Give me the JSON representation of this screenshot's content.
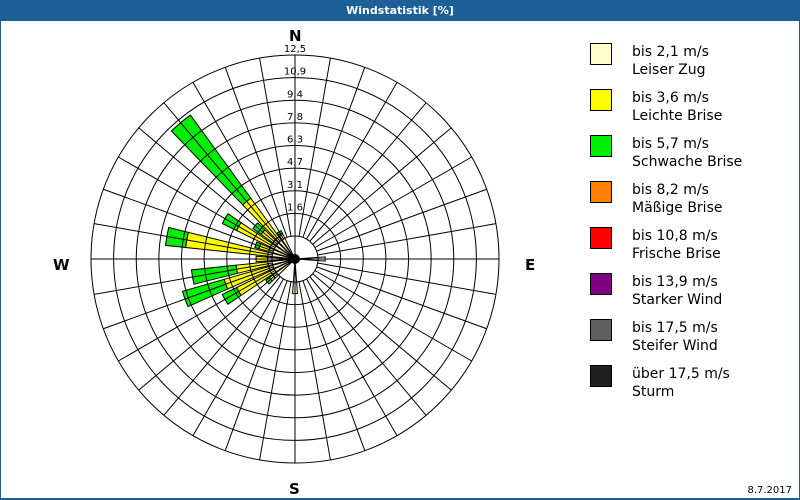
{
  "window": {
    "title": "Windstatistik [%]"
  },
  "compass": {
    "n": "N",
    "e": "E",
    "s": "S",
    "w": "W"
  },
  "date": "8.7.2017",
  "legend": [
    {
      "speed": "bis 2,1 m/s",
      "name": "Leiser Zug",
      "color": "#ffffcc"
    },
    {
      "speed": "bis 3,6 m/s",
      "name": "Leichte Brise",
      "color": "#ffff00"
    },
    {
      "speed": "bis 5,7 m/s",
      "name": "Schwache Brise",
      "color": "#00ee00"
    },
    {
      "speed": "bis 8,2 m/s",
      "name": "Mäßige Brise",
      "color": "#ff8000"
    },
    {
      "speed": "bis 10,8 m/s",
      "name": "Frische Brise",
      "color": "#ff0000"
    },
    {
      "speed": "bis 13,9 m/s",
      "name": "Starker Wind",
      "color": "#800080"
    },
    {
      "speed": "bis 17,5 m/s",
      "name": "Steifer Wind",
      "color": "#606060"
    },
    {
      "speed": "über 17,5 m/s",
      "name": "Sturm",
      "color": "#202020"
    }
  ],
  "chart_data": {
    "type": "windrose",
    "title": "Windstatistik [%]",
    "radial_ticks": [
      "1,6",
      "3,1",
      "4,7",
      "6,3",
      "7,8",
      "9,4",
      "10,9",
      "12,5"
    ],
    "rmax": 12.5,
    "sector_width_deg": 10,
    "series_order": [
      "bis 2,1 m/s",
      "bis 3,6 m/s",
      "bis 5,7 m/s"
    ],
    "sectors": [
      {
        "dir": 320,
        "cumulative": [
          0.3,
          3.6,
          10.7
        ]
      },
      {
        "dir": 310,
        "cumulative": [
          0.3,
          1.3,
          2.0
        ]
      },
      {
        "dir": 300,
        "cumulative": [
          0.3,
          2.9,
          4.0
        ]
      },
      {
        "dir": 290,
        "cumulative": [
          0.3,
          1.0,
          1.3
        ]
      },
      {
        "dir": 280,
        "cumulative": [
          0.3,
          6.0,
          7.4
        ]
      },
      {
        "dir": 260,
        "cumulative": [
          0.3,
          2.5,
          5.6
        ]
      },
      {
        "dir": 250,
        "cumulative": [
          0.3,
          3.5,
          6.5
        ]
      },
      {
        "dir": 240,
        "cumulative": [
          0.3,
          2.9,
          4.0
        ]
      },
      {
        "dir": 230,
        "cumulative": [
          0.3,
          0.6,
          0.9
        ]
      },
      {
        "dir": 270,
        "cumulative": [
          0.3,
          1.1,
          1.1
        ]
      },
      {
        "dir": 330,
        "cumulative": [
          0.3,
          0.4,
          0.6
        ]
      },
      {
        "dir": 90,
        "cumulative": [
          0.5,
          0.5,
          0.5
        ]
      },
      {
        "dir": 180,
        "cumulative": [
          0.8,
          0.8,
          0.8
        ]
      }
    ]
  }
}
